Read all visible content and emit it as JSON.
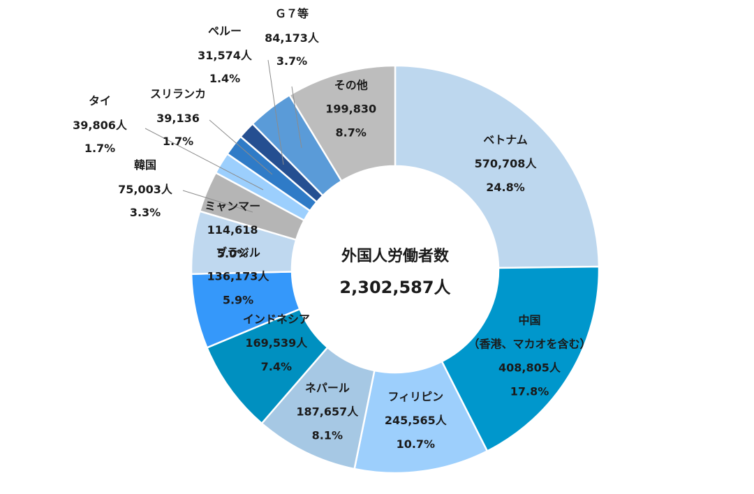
{
  "chart_data": {
    "type": "pie",
    "variant": "donut",
    "title": "",
    "center_title": "外国人労働者数",
    "center_value": "2,302,587人",
    "slices": [
      {
        "name": "ベトナム",
        "value_label": "570,708人",
        "value": 570708,
        "percent_label": "24.8%",
        "percent": 24.8,
        "color": "#bdd7ee"
      },
      {
        "name": "中国",
        "subname": "（香港、マカオを含む）",
        "value_label": "408,805人",
        "value": 408805,
        "percent_label": "17.8%",
        "percent": 17.8,
        "color": "#0097cc"
      },
      {
        "name": "フィリピン",
        "value_label": "245,565人",
        "value": 245565,
        "percent_label": "10.7%",
        "percent": 10.7,
        "color": "#9dcffc"
      },
      {
        "name": "ネパール",
        "value_label": "187,657人",
        "value": 187657,
        "percent_label": "8.1%",
        "percent": 8.1,
        "color": "#a6c8e4"
      },
      {
        "name": "インドネシア",
        "value_label": "169,539人",
        "value": 169539,
        "percent_label": "7.4%",
        "percent": 7.4,
        "color": "#0090c0"
      },
      {
        "name": "ブラジル",
        "value_label": "136,173人",
        "value": 136173,
        "percent_label": "5.9%",
        "percent": 5.9,
        "color": "#3598fa"
      },
      {
        "name": "ミャンマー",
        "value_label": "114,618",
        "value": 114618,
        "percent_label": "5.0%",
        "percent": 5.0,
        "color": "#bfd8ef"
      },
      {
        "name": "韓国",
        "value_label": "75,003人",
        "value": 75003,
        "percent_label": "3.3%",
        "percent": 3.3,
        "color": "#b5b5b5"
      },
      {
        "name": "タイ",
        "value_label": "39,806人",
        "value": 39806,
        "percent_label": "1.7%",
        "percent": 1.7,
        "color": "#9ccffd"
      },
      {
        "name": "スリランカ",
        "value_label": "39,136",
        "value": 39136,
        "percent_label": "1.7%",
        "percent": 1.7,
        "color": "#2f7bc7"
      },
      {
        "name": "ペルー",
        "value_label": "31,574人",
        "value": 31574,
        "percent_label": "1.4%",
        "percent": 1.4,
        "color": "#254f91"
      },
      {
        "name": "Ｇ７等",
        "value_label": "84,173人",
        "value": 84173,
        "percent_label": "3.7%",
        "percent": 3.7,
        "color": "#5a9bd8"
      },
      {
        "name": "その他",
        "value_label": "199,830",
        "value": 199830,
        "percent_label": "8.7%",
        "percent": 8.7,
        "color": "#bdbdbd"
      }
    ],
    "legend": "none"
  }
}
